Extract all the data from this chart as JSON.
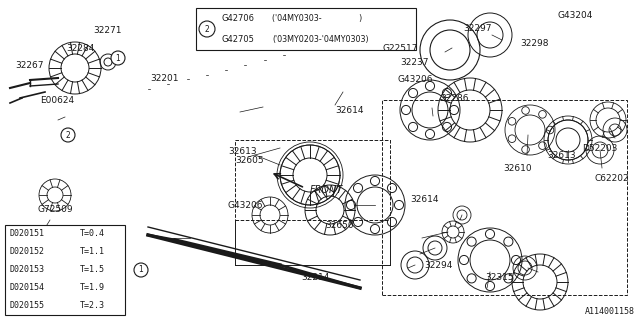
{
  "bg_color": "#ffffff",
  "line_color": "#1a1a1a",
  "note_box": {
    "rows": [
      [
        "G42705",
        "('03MY0203-'04MY0303)"
      ],
      [
        "G42706",
        "('04MY0303-            )"
      ]
    ]
  },
  "table_rows": [
    [
      "D020151",
      "T=0.4"
    ],
    [
      "D020152",
      "T=1.1"
    ],
    [
      "D020153",
      "T=1.5"
    ],
    [
      "D020154",
      "T=1.9"
    ],
    [
      "D020155",
      "T=2.3"
    ]
  ],
  "diagram_id": "A114001158"
}
